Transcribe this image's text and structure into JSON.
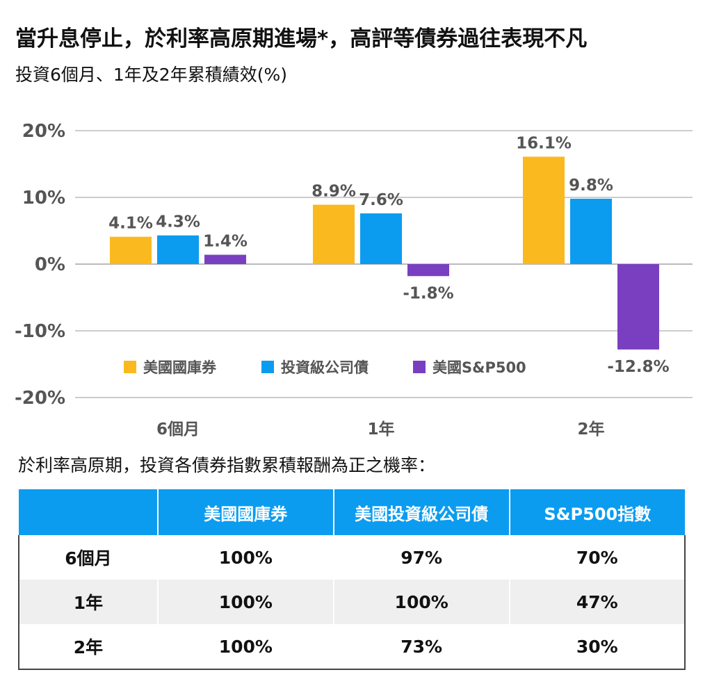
{
  "header": {
    "title": "當升息停止，於利率高原期進場*，高評等債券過往表現不凡",
    "subtitle": "投資6個月、1年及2年累積績效(%)"
  },
  "chart_data": {
    "type": "bar",
    "categories": [
      "6個月",
      "1年",
      "2年"
    ],
    "series": [
      {
        "name": "美國國庫券",
        "color": "#fbb920",
        "values": [
          4.1,
          8.9,
          16.1
        ],
        "labels": [
          "4.1%",
          "8.9%",
          "16.1%"
        ]
      },
      {
        "name": "投資級公司債",
        "color": "#0b9cf0",
        "values": [
          4.3,
          7.6,
          9.8
        ],
        "labels": [
          "4.3%",
          "7.6%",
          "9.8%"
        ]
      },
      {
        "name": "美國S&P500",
        "color": "#7a3fc0",
        "values": [
          1.4,
          -1.8,
          -12.8
        ],
        "labels": [
          "1.4%",
          "-1.8%",
          "-12.8%"
        ]
      }
    ],
    "yticks": [
      20,
      10,
      0,
      -10,
      -20
    ],
    "ytick_labels": [
      "20%",
      "10%",
      "0%",
      "-10%",
      "-20%"
    ],
    "ylim": [
      -20,
      20
    ],
    "grid": true,
    "legend": "bottom-left"
  },
  "table": {
    "caption": "於利率高原期，投資各債券指數累積報酬為正之機率：",
    "headers": [
      "",
      "美國國庫券",
      "美國投資級公司債",
      "S&P500指數"
    ],
    "rows": [
      [
        "6個月",
        "100%",
        "97%",
        "70%"
      ],
      [
        "1年",
        "100%",
        "100%",
        "47%"
      ],
      [
        "2年",
        "100%",
        "73%",
        "30%"
      ]
    ]
  }
}
